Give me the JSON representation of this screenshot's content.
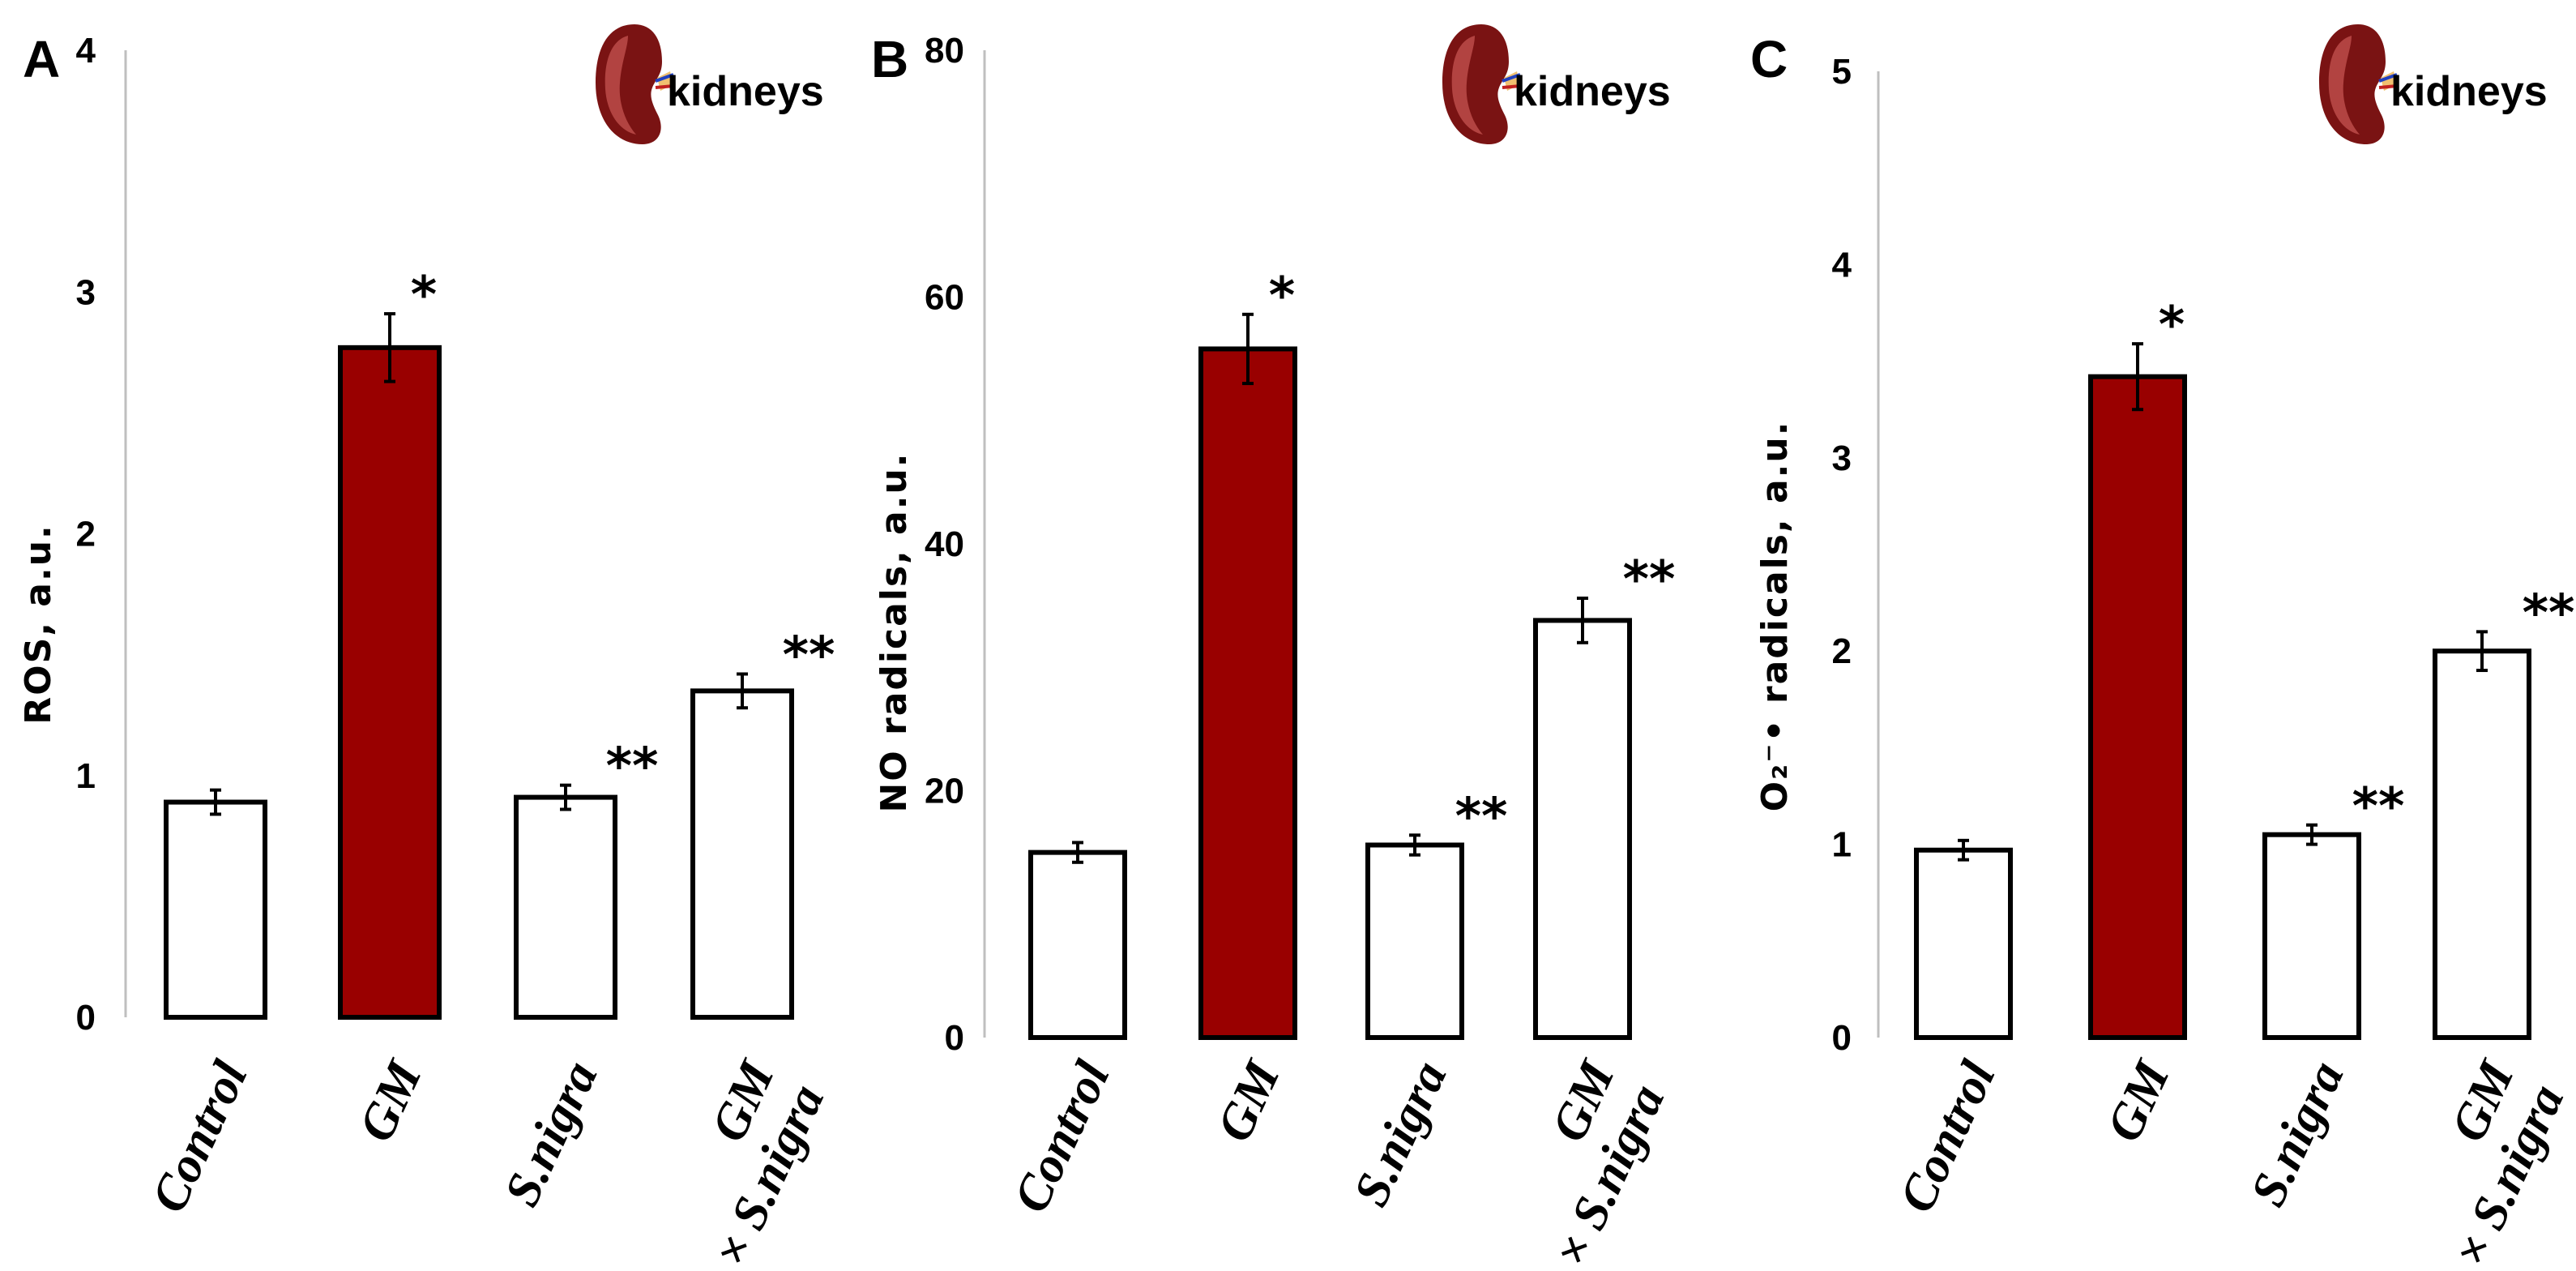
{
  "chart_data": [
    {
      "type": "bar",
      "panel": "A",
      "title": "",
      "organ_label": "kidneys",
      "ylabel": "ROS, a.u.",
      "ylim": [
        0,
        4
      ],
      "yticks": [
        "0",
        "1",
        "2",
        "3",
        "4"
      ],
      "categories": [
        "Control",
        "GM",
        "S.nigra",
        "GM × S.nigra"
      ],
      "category_lines": [
        [
          "Control"
        ],
        [
          "GM"
        ],
        [
          "S.nigra"
        ],
        [
          "GM",
          "× S.nigra"
        ]
      ],
      "values": [
        0.89,
        2.77,
        0.91,
        1.35
      ],
      "errors": [
        0.05,
        0.14,
        0.05,
        0.07
      ],
      "significance": [
        "",
        "*",
        "**",
        "**"
      ],
      "bar_colors": [
        "#ffffff",
        "#990000",
        "#ffffff",
        "#ffffff"
      ]
    },
    {
      "type": "bar",
      "panel": "B",
      "title": "",
      "organ_label": "kidneys",
      "ylabel": "NO radicals, a.u.",
      "ylim": [
        0,
        80
      ],
      "yticks": [
        "0",
        "20",
        "40",
        "60",
        "80"
      ],
      "categories": [
        "Control",
        "GM",
        "S.nigra",
        "GM × S.nigra"
      ],
      "category_lines": [
        [
          "Control"
        ],
        [
          "GM"
        ],
        [
          "S.nigra"
        ],
        [
          "GM",
          "× S.nigra"
        ]
      ],
      "values": [
        15.0,
        55.8,
        15.6,
        33.8
      ],
      "errors": [
        0.8,
        2.8,
        0.8,
        1.8
      ],
      "significance": [
        "",
        "*",
        "**",
        "**"
      ],
      "bar_colors": [
        "#ffffff",
        "#990000",
        "#ffffff",
        "#ffffff"
      ]
    },
    {
      "type": "bar",
      "panel": "C",
      "title": "",
      "organ_label": "kidneys",
      "ylabel": "O₂⁻• radicals, a.u.",
      "ylim": [
        0,
        5
      ],
      "yticks": [
        "0",
        "1",
        "2",
        "3",
        "4",
        "5"
      ],
      "categories": [
        "Control",
        "GM",
        "S.nigra",
        "GM × S.nigra"
      ],
      "category_lines": [
        [
          "Control"
        ],
        [
          "GM"
        ],
        [
          "S.nigra"
        ],
        [
          "GM",
          "× S.nigra"
        ]
      ],
      "values": [
        0.97,
        3.42,
        1.05,
        2.0
      ],
      "errors": [
        0.05,
        0.17,
        0.05,
        0.1
      ],
      "significance": [
        "",
        "*",
        "**",
        "**"
      ],
      "bar_colors": [
        "#ffffff",
        "#990000",
        "#ffffff",
        "#ffffff"
      ]
    }
  ],
  "colors": {
    "gm_bar": "#990000",
    "axis": "#bfbfbf",
    "bar_outline": "#000000",
    "kidney_dark": "#7a1313",
    "kidney_light": "#c0504d"
  },
  "icons": [
    "kidney-icon"
  ]
}
